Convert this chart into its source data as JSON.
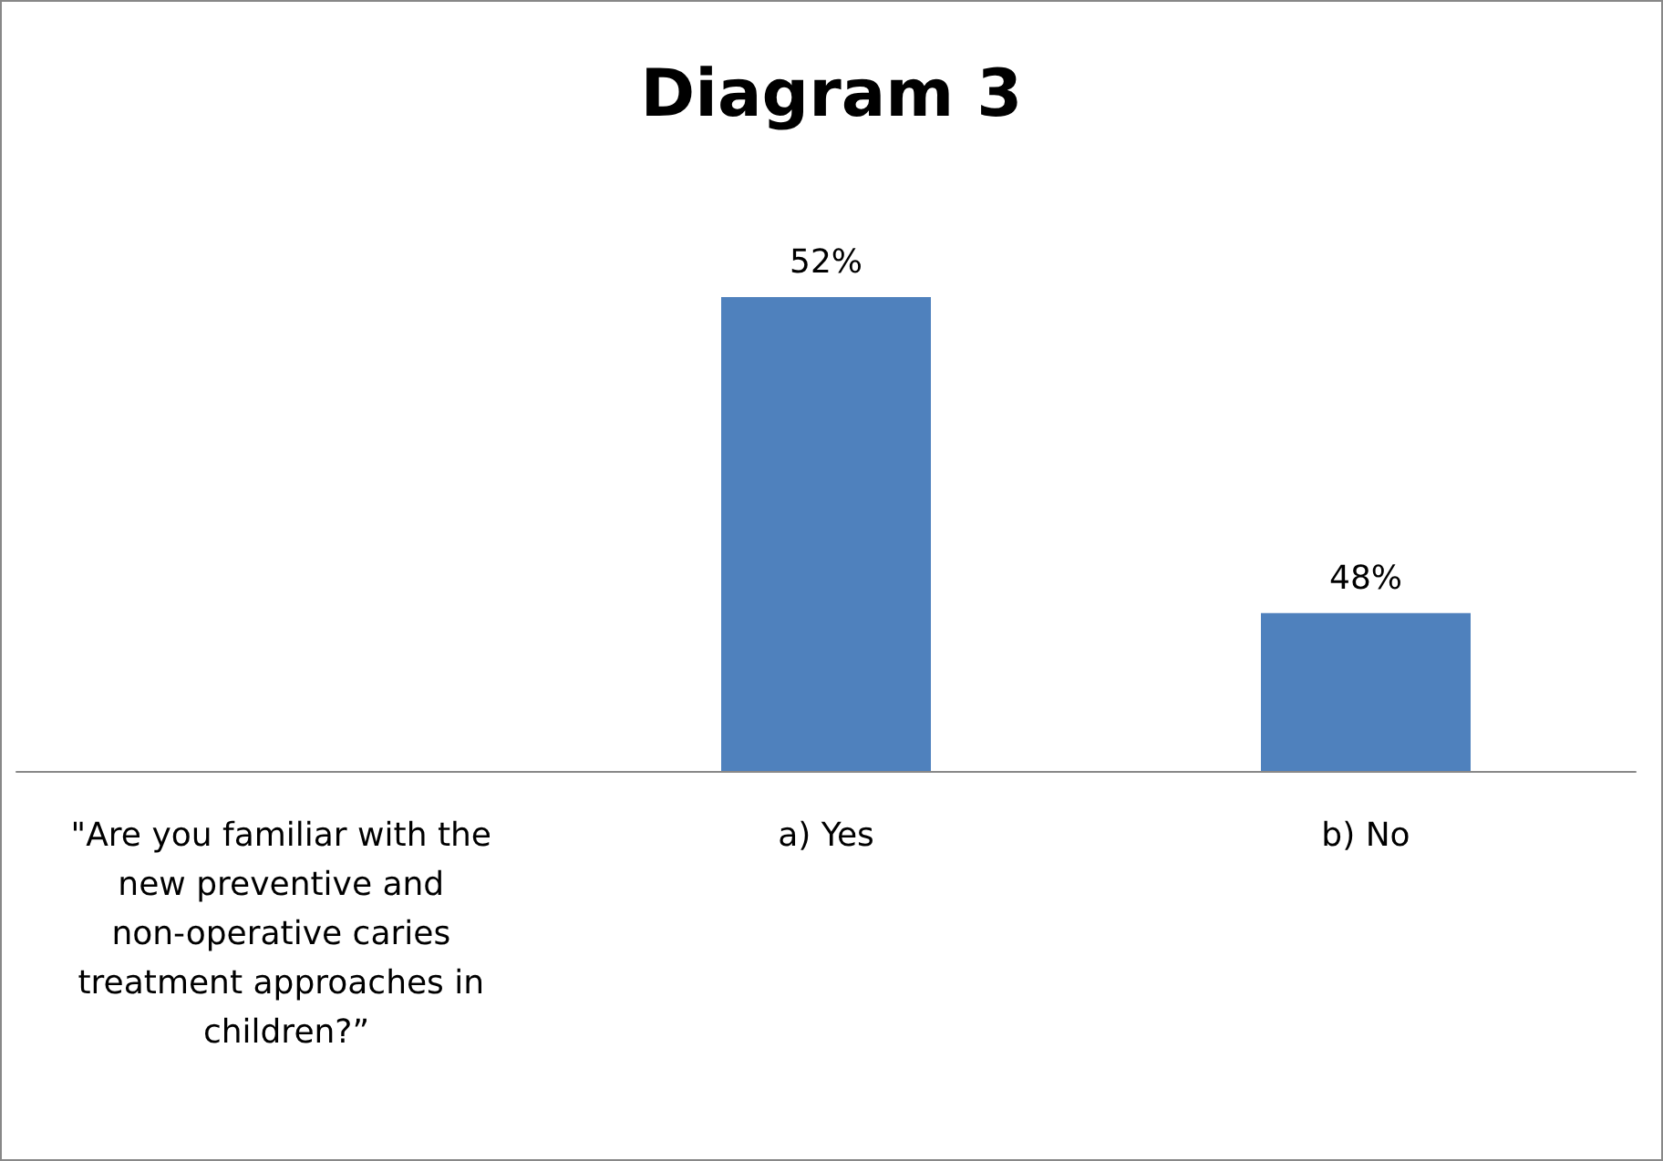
{
  "chart_data": {
    "type": "bar",
    "title": "Diagram 3",
    "categories": [
      "\"Are you familiar with the new preventive and non-operative caries treatment approaches in children?”",
      "a) Yes",
      "b) No"
    ],
    "values": [
      null,
      52,
      48
    ],
    "value_labels": [
      null,
      "52%",
      "48%"
    ],
    "color": "#4f81bd",
    "ylim": [
      46,
      52
    ],
    "tick_labels": "x",
    "grid": false
  }
}
